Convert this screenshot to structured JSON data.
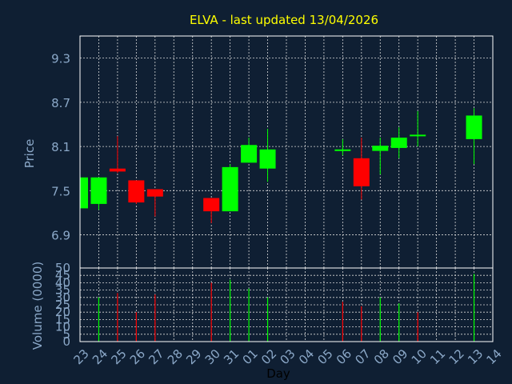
{
  "colors": {
    "background": "#0f1f33",
    "grid": "#d9d9d9",
    "axis_text": "#8ba8c8",
    "title": "#ffff00",
    "up": "#00ff00",
    "down": "#ff0000",
    "frame": "#ffffff",
    "axis_label": "#8ba8c8"
  },
  "chart_data": [
    {
      "type": "candlestick",
      "title": "ELVA - last updated 13/04/2026",
      "ylabel": "Price",
      "ylim": [
        6.45,
        9.6
      ],
      "yticks": [
        6.9,
        7.5,
        8.1,
        8.7,
        9.3
      ],
      "ytick_labels": [
        "6.9",
        "7.5",
        "8.1",
        "8.7",
        "9.3"
      ],
      "grid": true,
      "candles": [
        {
          "x": "23",
          "open": 7.26,
          "high": 7.7,
          "low": 7.26,
          "close": 7.68
        },
        {
          "x": "24",
          "open": 7.32,
          "high": 7.68,
          "low": 7.24,
          "close": 7.68
        },
        {
          "x": "25",
          "open": 7.8,
          "high": 8.24,
          "low": 7.74,
          "close": 7.76
        },
        {
          "x": "26",
          "open": 7.64,
          "high": 7.64,
          "low": 7.32,
          "close": 7.34
        },
        {
          "x": "27",
          "open": 7.52,
          "high": 7.52,
          "low": 7.15,
          "close": 7.42
        },
        {
          "x": "30",
          "open": 7.4,
          "high": 7.4,
          "low": 7.06,
          "close": 7.22
        },
        {
          "x": "31",
          "open": 7.22,
          "high": 7.86,
          "low": 7.22,
          "close": 7.82
        },
        {
          "x": "01",
          "open": 7.88,
          "high": 8.22,
          "low": 7.88,
          "close": 8.12
        },
        {
          "x": "02",
          "open": 7.8,
          "high": 8.34,
          "low": 7.62,
          "close": 8.06
        },
        {
          "x": "06",
          "open": 8.06,
          "high": 8.2,
          "low": 7.98,
          "close": 8.06
        },
        {
          "x": "07",
          "open": 7.94,
          "high": 8.22,
          "low": 7.38,
          "close": 7.56
        },
        {
          "x": "08",
          "open": 8.04,
          "high": 8.22,
          "low": 7.72,
          "close": 8.11
        },
        {
          "x": "09",
          "open": 8.08,
          "high": 8.36,
          "low": 7.94,
          "close": 8.22
        },
        {
          "x": "10",
          "open": 8.26,
          "high": 8.58,
          "low": 8.1,
          "close": 8.26
        },
        {
          "x": "13",
          "open": 8.2,
          "high": 8.62,
          "low": 7.86,
          "close": 8.52
        }
      ]
    },
    {
      "type": "bar",
      "ylabel": "Volume (0000)",
      "xlabel": "Day",
      "ylim": [
        0,
        50
      ],
      "yticks": [
        0,
        5,
        10,
        15,
        20,
        25,
        30,
        35,
        40,
        45,
        50
      ],
      "ytick_labels": [
        "0",
        "5",
        "10",
        "15",
        "20",
        "25",
        "30",
        "35",
        "40",
        "45",
        "50"
      ],
      "categories": [
        "23",
        "24",
        "25",
        "26",
        "27",
        "28",
        "29",
        "30",
        "31",
        "01",
        "02",
        "03",
        "04",
        "05",
        "06",
        "07",
        "08",
        "09",
        "10",
        "11",
        "12",
        "13",
        "14"
      ],
      "volumes": [
        {
          "x": "24",
          "value": 30,
          "direction": "up"
        },
        {
          "x": "25",
          "value": 33,
          "direction": "down"
        },
        {
          "x": "26",
          "value": 20,
          "direction": "down"
        },
        {
          "x": "27",
          "value": 32,
          "direction": "down"
        },
        {
          "x": "30",
          "value": 40,
          "direction": "down"
        },
        {
          "x": "31",
          "value": 42,
          "direction": "up"
        },
        {
          "x": "01",
          "value": 36,
          "direction": "up"
        },
        {
          "x": "02",
          "value": 30,
          "direction": "up"
        },
        {
          "x": "06",
          "value": 27,
          "direction": "down"
        },
        {
          "x": "07",
          "value": 24,
          "direction": "down"
        },
        {
          "x": "08",
          "value": 30,
          "direction": "up"
        },
        {
          "x": "09",
          "value": 26,
          "direction": "up"
        },
        {
          "x": "10",
          "value": 20,
          "direction": "down"
        },
        {
          "x": "13",
          "value": 46,
          "direction": "up"
        }
      ]
    }
  ]
}
